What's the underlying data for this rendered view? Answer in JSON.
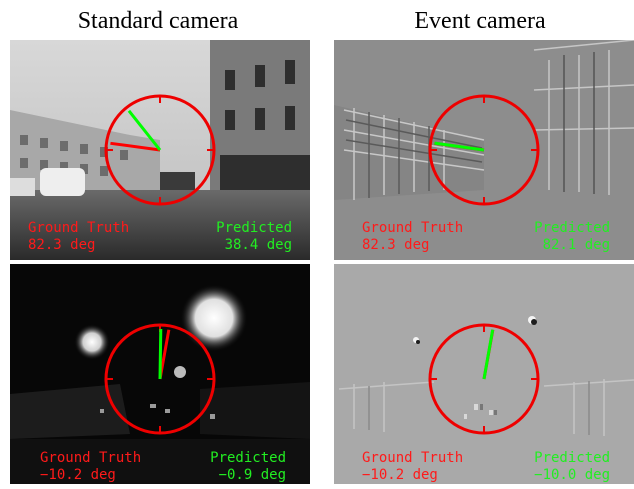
{
  "columns": [
    "Standard camera",
    "Event camera"
  ],
  "labels": {
    "gt": "Ground Truth",
    "pred": "Predicted"
  },
  "colors": {
    "gt": "#ff0000",
    "pred": "#00ff00",
    "circle": "#ee0000"
  },
  "panels": [
    {
      "name": "standard-day",
      "style": "day-gray",
      "gt_value": "82.3 deg",
      "pred_value": "38.4 deg",
      "gt_angle": 82.3,
      "pred_angle": 38.4
    },
    {
      "name": "event-day",
      "style": "event-gray",
      "gt_value": "82.3 deg",
      "pred_value": "82.1 deg",
      "gt_angle": 82.3,
      "pred_angle": 82.1
    },
    {
      "name": "standard-night",
      "style": "night-dark",
      "gt_value": "−10.2 deg",
      "pred_value": "−0.9 deg",
      "gt_angle": -10.2,
      "pred_angle": -0.9
    },
    {
      "name": "event-night",
      "style": "event-gray-light",
      "gt_value": "−10.2 deg",
      "pred_value": "−10.0 deg",
      "gt_angle": -10.2,
      "pred_angle": -10.0
    }
  ]
}
